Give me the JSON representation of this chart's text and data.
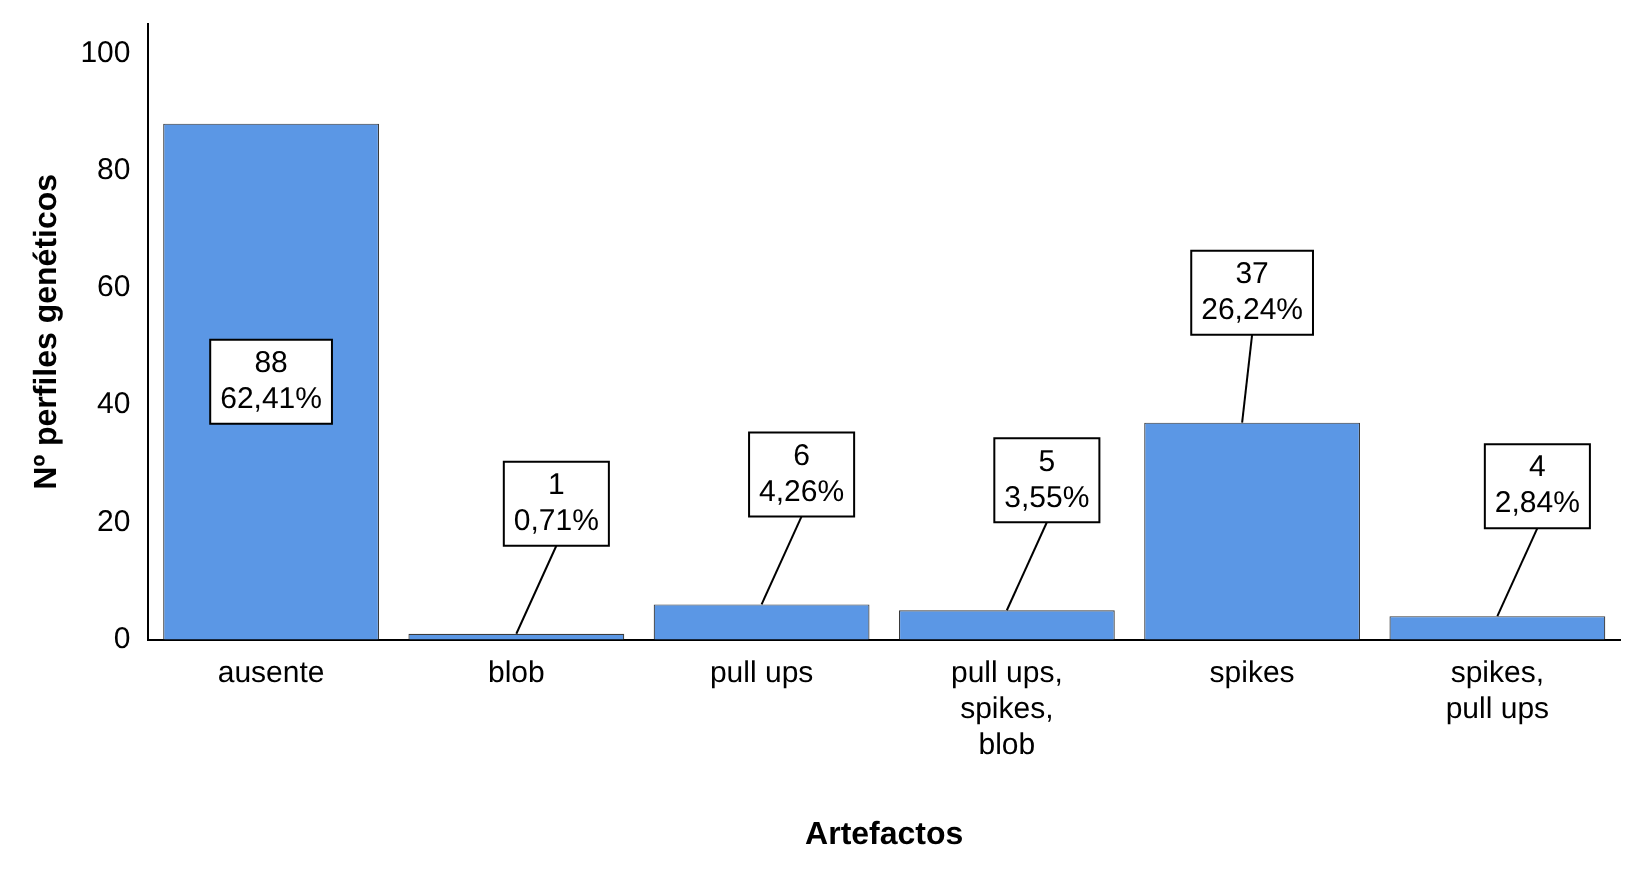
{
  "chart_data": {
    "type": "bar",
    "xlabel": "Artefactos",
    "ylabel": "Nº perfiles genéticos",
    "categories": [
      "ausente",
      "blob",
      "pull ups",
      "pull ups, spikes, blob",
      "spikes",
      "spikes, pull ups"
    ],
    "values": [
      88,
      1,
      6,
      5,
      37,
      4
    ],
    "value_labels": [
      "88\n62,41%",
      "1\n0,71%",
      "6\n4,26%",
      "5\n3,55%",
      "37\n26,24%",
      "4\n2,84%"
    ],
    "color": "#5b97e5",
    "ylim": [
      0,
      105
    ],
    "yticks": [
      0,
      20,
      40,
      60,
      80,
      100
    ],
    "grid": false,
    "legend": false
  }
}
